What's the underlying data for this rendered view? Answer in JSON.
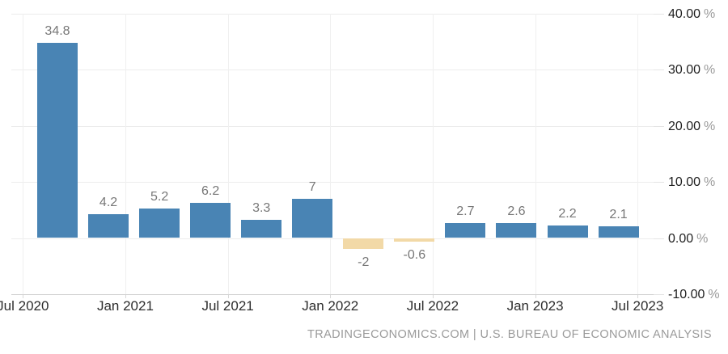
{
  "chart_data": {
    "type": "bar",
    "values": [
      34.8,
      4.2,
      5.2,
      6.2,
      3.3,
      7,
      -2,
      -0.6,
      2.7,
      2.6,
      2.2,
      2.1
    ],
    "bar_labels": [
      "34.8",
      "4.2",
      "5.2",
      "6.2",
      "3.3",
      "7",
      "-2",
      "-0.6",
      "2.7",
      "2.6",
      "2.2",
      "2.1"
    ],
    "xticks": [
      "Jul 2020",
      "Jan 2021",
      "Jul 2021",
      "Jan 2022",
      "Jul 2022",
      "Jan 2023",
      "Jul 2023"
    ],
    "yticks": [
      {
        "value": 40,
        "num": "40.00",
        "suffix": "%"
      },
      {
        "value": 30,
        "num": "30.00",
        "suffix": "%"
      },
      {
        "value": 20,
        "num": "20.00",
        "suffix": "%"
      },
      {
        "value": 10,
        "num": "10.00",
        "suffix": "%"
      },
      {
        "value": 0,
        "num": "0.00",
        "suffix": "%"
      },
      {
        "value": -10,
        "num": "-10.00",
        "suffix": "%"
      }
    ],
    "ylim": [
      -10,
      40
    ],
    "grid": true,
    "legend_position": "none",
    "colors": {
      "positive_bar": "#4984b4",
      "negative_bar": "#f2d9a7",
      "value_label": "#777777",
      "x_tick_label": "#2d2d2d",
      "y_tick_number": "#1f1f1f",
      "y_tick_percent": "#9a9a9a",
      "gridline": "#ececec",
      "axis_line": "#d2d2d2"
    }
  },
  "footer": {
    "attribution": "TRADINGECONOMICS.COM | U.S. BUREAU OF ECONOMIC ANALYSIS"
  }
}
